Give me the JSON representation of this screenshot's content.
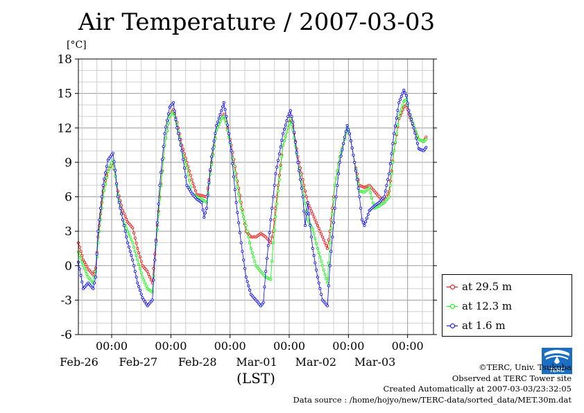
{
  "title": "Air Temperature / 2007-03-03",
  "chart_data": {
    "type": "line",
    "title": "Air Temperature / 2007-03-03",
    "unit_label": "[°C]",
    "xlabel": "(LST)",
    "ylabel": "",
    "ylim": [
      -6,
      18
    ],
    "yticks": [
      -6,
      -3,
      0,
      3,
      6,
      9,
      12,
      15,
      18
    ],
    "xlim_hours": [
      0,
      144
    ],
    "date_ticks": [
      {
        "hour": 13.5,
        "time": "00:00",
        "date": "Feb-26"
      },
      {
        "hour": 37.5,
        "time": "00:00",
        "date": "Feb-27"
      },
      {
        "hour": 61.5,
        "time": "00:00",
        "date": "Feb-28"
      },
      {
        "hour": 85.5,
        "time": "00:00",
        "date": "Mar-01"
      },
      {
        "hour": 109.5,
        "time": "00:00",
        "date": "Mar-02"
      },
      {
        "hour": 133.5,
        "time": "00:00",
        "date": "Mar-03"
      }
    ],
    "grid": true,
    "legend_position": "right",
    "series": [
      {
        "name": "at 29.5 m",
        "color": "#ff0000",
        "points": [
          [
            0,
            2.0
          ],
          [
            2,
            0.5
          ],
          [
            4,
            -0.3
          ],
          [
            6,
            -0.8
          ],
          [
            7,
            -0.2
          ],
          [
            8,
            2.5
          ],
          [
            10,
            6.5
          ],
          [
            12,
            8.3
          ],
          [
            14,
            9.0
          ],
          [
            15,
            7.8
          ],
          [
            16,
            6.5
          ],
          [
            18,
            4.8
          ],
          [
            20,
            3.8
          ],
          [
            22,
            3.3
          ],
          [
            24,
            1.5
          ],
          [
            26,
            0.0
          ],
          [
            28,
            -0.5
          ],
          [
            30,
            -1.5
          ],
          [
            31,
            1.0
          ],
          [
            33,
            6.0
          ],
          [
            35,
            10.5
          ],
          [
            37,
            13.0
          ],
          [
            38.5,
            13.6
          ],
          [
            40,
            12.5
          ],
          [
            42,
            10.5
          ],
          [
            44,
            9.0
          ],
          [
            46,
            7.5
          ],
          [
            48,
            6.2
          ],
          [
            50,
            6.1
          ],
          [
            52,
            6.0
          ],
          [
            54,
            9.0
          ],
          [
            56,
            11.8
          ],
          [
            58,
            12.8
          ],
          [
            59,
            13.2
          ],
          [
            60,
            12.5
          ],
          [
            62,
            10.5
          ],
          [
            64,
            8.0
          ],
          [
            66,
            5.5
          ],
          [
            68,
            3.0
          ],
          [
            70,
            2.5
          ],
          [
            72,
            2.5
          ],
          [
            74,
            2.8
          ],
          [
            76,
            2.5
          ],
          [
            78,
            2.0
          ],
          [
            79,
            3.0
          ],
          [
            81,
            7.0
          ],
          [
            83,
            10.5
          ],
          [
            85,
            12.0
          ],
          [
            86,
            13.0
          ],
          [
            87,
            12.2
          ],
          [
            89,
            9.5
          ],
          [
            91,
            7.5
          ],
          [
            93,
            5.5
          ],
          [
            95,
            4.5
          ],
          [
            97,
            3.5
          ],
          [
            99,
            2.5
          ],
          [
            101,
            1.5
          ],
          [
            102,
            3.0
          ],
          [
            104,
            7.0
          ],
          [
            106,
            9.5
          ],
          [
            108,
            11.0
          ],
          [
            109,
            12.0
          ],
          [
            110,
            11.5
          ],
          [
            112,
            9.0
          ],
          [
            114,
            7.0
          ],
          [
            116,
            6.8
          ],
          [
            118,
            7.0
          ],
          [
            120,
            6.5
          ],
          [
            122,
            6.0
          ],
          [
            124,
            5.5
          ],
          [
            126,
            6.5
          ],
          [
            128,
            10.0
          ],
          [
            130,
            12.8
          ],
          [
            132,
            13.8
          ],
          [
            133,
            14.0
          ],
          [
            134,
            13.2
          ],
          [
            136,
            12.0
          ],
          [
            138,
            11.0
          ],
          [
            140,
            10.8
          ],
          [
            141,
            11.2
          ]
        ]
      },
      {
        "name": "at 12.3 m",
        "color": "#00ff00",
        "points": [
          [
            0,
            1.2
          ],
          [
            2,
            0.0
          ],
          [
            4,
            -1.0
          ],
          [
            6,
            -1.5
          ],
          [
            7,
            -0.5
          ],
          [
            8,
            2.0
          ],
          [
            10,
            6.0
          ],
          [
            12,
            8.2
          ],
          [
            14,
            9.2
          ],
          [
            15,
            7.8
          ],
          [
            16,
            6.2
          ],
          [
            18,
            4.0
          ],
          [
            20,
            3.0
          ],
          [
            22,
            2.0
          ],
          [
            24,
            0.5
          ],
          [
            26,
            -1.0
          ],
          [
            28,
            -2.0
          ],
          [
            30,
            -2.3
          ],
          [
            31,
            0.5
          ],
          [
            33,
            5.8
          ],
          [
            35,
            10.5
          ],
          [
            37,
            13.0
          ],
          [
            38.5,
            13.4
          ],
          [
            40,
            12.3
          ],
          [
            42,
            10.0
          ],
          [
            44,
            8.5
          ],
          [
            46,
            6.3
          ],
          [
            48,
            6.0
          ],
          [
            50,
            5.8
          ],
          [
            52,
            5.5
          ],
          [
            54,
            8.8
          ],
          [
            56,
            11.8
          ],
          [
            58,
            12.8
          ],
          [
            59,
            13.0
          ],
          [
            60,
            12.4
          ],
          [
            62,
            10.0
          ],
          [
            64,
            7.5
          ],
          [
            66,
            5.0
          ],
          [
            68,
            3.5
          ],
          [
            70,
            1.5
          ],
          [
            72,
            0.0
          ],
          [
            74,
            -0.5
          ],
          [
            76,
            -1.0
          ],
          [
            78,
            -1.2
          ],
          [
            79,
            2.0
          ],
          [
            81,
            6.5
          ],
          [
            83,
            10.5
          ],
          [
            85,
            12.0
          ],
          [
            86,
            12.8
          ],
          [
            87,
            11.8
          ],
          [
            89,
            9.0
          ],
          [
            91,
            6.8
          ],
          [
            93,
            4.0
          ],
          [
            95,
            3.2
          ],
          [
            97,
            1.5
          ],
          [
            99,
            0.0
          ],
          [
            101,
            -1.5
          ],
          [
            102,
            2.0
          ],
          [
            104,
            7.0
          ],
          [
            106,
            9.5
          ],
          [
            108,
            11.0
          ],
          [
            109,
            12.0
          ],
          [
            110,
            11.5
          ],
          [
            112,
            9.0
          ],
          [
            114,
            6.5
          ],
          [
            116,
            6.4
          ],
          [
            118,
            6.8
          ],
          [
            120,
            5.0
          ],
          [
            122,
            5.2
          ],
          [
            124,
            5.5
          ],
          [
            126,
            6.0
          ],
          [
            128,
            10.0
          ],
          [
            130,
            13.0
          ],
          [
            132,
            14.3
          ],
          [
            133,
            14.5
          ],
          [
            134,
            13.5
          ],
          [
            136,
            12.2
          ],
          [
            138,
            11.0
          ],
          [
            140,
            10.8
          ],
          [
            141,
            11.0
          ]
        ]
      },
      {
        "name": "at 1.6 m",
        "color": "#0000ff",
        "points": [
          [
            0,
            0.3
          ],
          [
            2,
            -2.0
          ],
          [
            4,
            -1.5
          ],
          [
            6,
            -2.0
          ],
          [
            7,
            -1.0
          ],
          [
            8,
            3.0
          ],
          [
            10,
            7.0
          ],
          [
            12,
            9.2
          ],
          [
            14,
            9.8
          ],
          [
            15,
            8.3
          ],
          [
            16,
            6.0
          ],
          [
            18,
            4.0
          ],
          [
            20,
            2.0
          ],
          [
            22,
            0.5
          ],
          [
            24,
            -1.5
          ],
          [
            26,
            -2.8
          ],
          [
            28,
            -3.5
          ],
          [
            30,
            -3.0
          ],
          [
            31,
            0.5
          ],
          [
            33,
            7.0
          ],
          [
            35,
            11.5
          ],
          [
            37,
            13.8
          ],
          [
            38.5,
            14.2
          ],
          [
            40,
            12.0
          ],
          [
            42,
            10.0
          ],
          [
            44,
            7.0
          ],
          [
            46,
            6.3
          ],
          [
            48,
            5.8
          ],
          [
            50,
            5.5
          ],
          [
            51,
            4.2
          ],
          [
            52,
            5.0
          ],
          [
            54,
            9.5
          ],
          [
            56,
            12.2
          ],
          [
            58,
            13.5
          ],
          [
            59,
            14.2
          ],
          [
            60,
            13.0
          ],
          [
            62,
            10.0
          ],
          [
            64,
            5.5
          ],
          [
            66,
            2.0
          ],
          [
            68,
            -1.0
          ],
          [
            70,
            -2.5
          ],
          [
            72,
            -3.0
          ],
          [
            74,
            -3.5
          ],
          [
            75,
            -3.2
          ],
          [
            76,
            -0.5
          ],
          [
            78,
            4.0
          ],
          [
            80,
            8.0
          ],
          [
            83,
            11.5
          ],
          [
            85,
            13.0
          ],
          [
            86,
            13.5
          ],
          [
            87,
            12.5
          ],
          [
            89,
            9.0
          ],
          [
            91,
            6.0
          ],
          [
            92,
            3.5
          ],
          [
            93,
            5.5
          ],
          [
            95,
            1.5
          ],
          [
            97,
            -1.0
          ],
          [
            99,
            -3.0
          ],
          [
            101,
            -3.5
          ],
          [
            102,
            0.0
          ],
          [
            104,
            5.0
          ],
          [
            106,
            9.0
          ],
          [
            108,
            11.2
          ],
          [
            109,
            12.2
          ],
          [
            110,
            11.5
          ],
          [
            112,
            9.0
          ],
          [
            114,
            6.0
          ],
          [
            115,
            4.0
          ],
          [
            116,
            3.5
          ],
          [
            118,
            4.8
          ],
          [
            120,
            5.2
          ],
          [
            122,
            5.5
          ],
          [
            124,
            6.0
          ],
          [
            126,
            8.0
          ],
          [
            128,
            11.5
          ],
          [
            130,
            14.2
          ],
          [
            132,
            15.3
          ],
          [
            133,
            14.8
          ],
          [
            134,
            13.5
          ],
          [
            136,
            12.0
          ],
          [
            138,
            10.2
          ],
          [
            140,
            10.0
          ],
          [
            141,
            10.3
          ]
        ]
      }
    ]
  },
  "legend": {
    "items": [
      {
        "label": "at 29.5 m",
        "color": "#ff0000"
      },
      {
        "label": "at 12.3 m",
        "color": "#00ff00"
      },
      {
        "label": "at 1.6 m",
        "color": "#0000ff"
      }
    ]
  },
  "credits": {
    "line1": "©TERC, Univ. Tsukuba",
    "line2": "Observed at TERC Tower site",
    "line3": "Created Automatically at 2007-03-03/23:32:05",
    "line4": "Data source : /home/hojyo/new/TERC-data/sorted_data/MET.30m.dat"
  },
  "logo_text": "TERC"
}
